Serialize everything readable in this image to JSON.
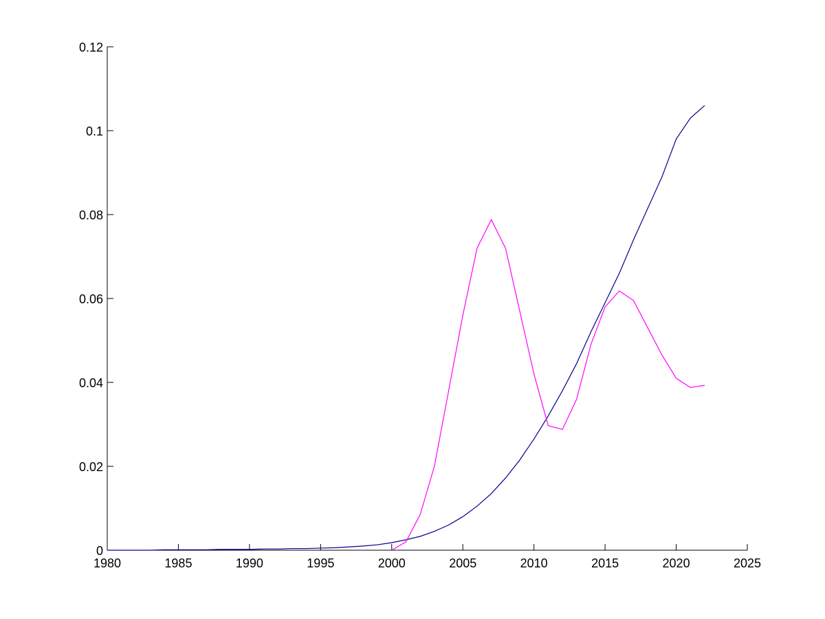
{
  "chart_data": {
    "type": "line",
    "x": [
      1980,
      1981,
      1982,
      1983,
      1984,
      1985,
      1986,
      1987,
      1988,
      1989,
      1990,
      1991,
      1992,
      1993,
      1994,
      1995,
      1996,
      1997,
      1998,
      1999,
      2000,
      2001,
      2002,
      2003,
      2004,
      2005,
      2006,
      2007,
      2008,
      2009,
      2010,
      2011,
      2012,
      2013,
      2014,
      2015,
      2016,
      2017,
      2018,
      2019,
      2020,
      2021,
      2022
    ],
    "series": [
      {
        "color": "#00008b",
        "values": [
          0,
          0,
          0,
          0,
          0.0001,
          0.0001,
          0.0001,
          0.0001,
          0.0002,
          0.0002,
          0.0002,
          0.0003,
          0.0003,
          0.0004,
          0.0004,
          0.0005,
          0.0006,
          0.0008,
          0.001,
          0.0013,
          0.0018,
          0.0025,
          0.0033,
          0.0045,
          0.006,
          0.008,
          0.0105,
          0.0135,
          0.0172,
          0.0215,
          0.0265,
          0.032,
          0.038,
          0.0445,
          0.052,
          0.059,
          0.066,
          0.074,
          0.0815,
          0.089,
          0.098,
          0.103,
          0.106
        ]
      },
      {
        "color": "#ff00ff",
        "values": [
          null,
          null,
          null,
          null,
          null,
          null,
          null,
          null,
          null,
          null,
          null,
          null,
          null,
          null,
          null,
          null,
          null,
          null,
          null,
          null,
          0,
          0.002,
          0.0085,
          0.02,
          0.038,
          0.056,
          0.072,
          0.0788,
          0.072,
          0.057,
          0.042,
          0.0297,
          0.0288,
          0.036,
          0.049,
          0.058,
          0.0618,
          0.0595,
          0.053,
          0.0465,
          0.041,
          0.0388,
          0.0393
        ]
      }
    ],
    "xlim": [
      1980,
      2025
    ],
    "xticks": [
      1980,
      1985,
      1990,
      1995,
      2000,
      2005,
      2010,
      2015,
      2020,
      2025
    ],
    "ylim": [
      0,
      0.12
    ],
    "yticks": [
      0,
      0.02,
      0.04,
      0.06,
      0.08,
      0.1,
      0.12
    ]
  }
}
